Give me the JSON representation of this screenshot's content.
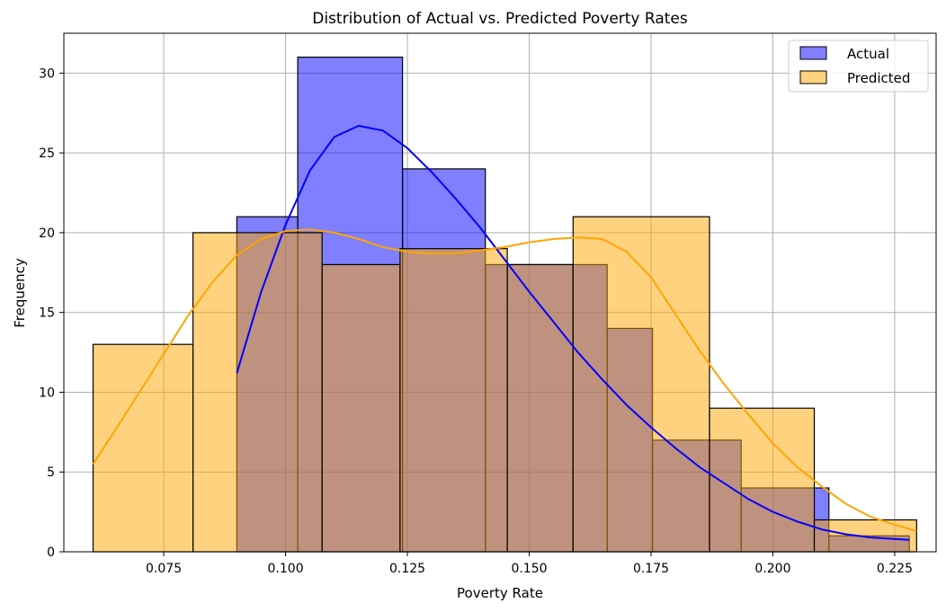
{
  "chart_data": {
    "type": "histogram",
    "title": "Distribution of Actual vs. Predicted Poverty Rates",
    "xlabel": "Poverty Rate",
    "ylabel": "Frequency",
    "xlim": [
      0.0545,
      0.2335
    ],
    "ylim": [
      0,
      32.5
    ],
    "x_ticks": [
      0.075,
      0.1,
      0.125,
      0.15,
      0.175,
      0.2,
      0.225
    ],
    "x_tick_labels": [
      "0.075",
      "0.100",
      "0.125",
      "0.150",
      "0.175",
      "0.200",
      "0.225"
    ],
    "y_ticks": [
      0,
      5,
      10,
      15,
      20,
      25,
      30
    ],
    "y_tick_labels": [
      "0",
      "5",
      "10",
      "15",
      "20",
      "25",
      "30"
    ],
    "grid": true,
    "legend_position": "top-right",
    "series": [
      {
        "name": "Actual",
        "color": "#0000ff",
        "fill_opacity": 0.5,
        "bins": [
          {
            "x0": 0.09,
            "x1": 0.1025,
            "count": 21
          },
          {
            "x0": 0.1025,
            "x1": 0.124,
            "count": 31
          },
          {
            "x0": 0.124,
            "x1": 0.141,
            "count": 24
          },
          {
            "x0": 0.141,
            "x1": 0.166,
            "count": 18
          },
          {
            "x0": 0.166,
            "x1": 0.1753,
            "count": 14
          },
          {
            "x0": 0.1753,
            "x1": 0.1935,
            "count": 7
          },
          {
            "x0": 0.1935,
            "x1": 0.2115,
            "count": 4
          },
          {
            "x0": 0.2115,
            "x1": 0.228,
            "count": 1
          }
        ],
        "kde": [
          [
            0.09,
            11.2
          ],
          [
            0.095,
            16.3
          ],
          [
            0.1,
            20.5
          ],
          [
            0.105,
            23.9
          ],
          [
            0.11,
            26.0
          ],
          [
            0.115,
            26.7
          ],
          [
            0.12,
            26.4
          ],
          [
            0.125,
            25.3
          ],
          [
            0.13,
            23.8
          ],
          [
            0.135,
            22.1
          ],
          [
            0.14,
            20.3
          ],
          [
            0.145,
            18.3
          ],
          [
            0.15,
            16.3
          ],
          [
            0.155,
            14.4
          ],
          [
            0.16,
            12.5
          ],
          [
            0.165,
            10.8
          ],
          [
            0.17,
            9.2
          ],
          [
            0.175,
            7.8
          ],
          [
            0.18,
            6.5
          ],
          [
            0.185,
            5.3
          ],
          [
            0.19,
            4.3
          ],
          [
            0.195,
            3.3
          ],
          [
            0.2,
            2.5
          ],
          [
            0.205,
            1.9
          ],
          [
            0.21,
            1.4
          ],
          [
            0.215,
            1.1
          ],
          [
            0.22,
            0.9
          ],
          [
            0.225,
            0.8
          ],
          [
            0.228,
            0.75
          ]
        ]
      },
      {
        "name": "Predicted",
        "color": "#ffa500",
        "fill_opacity": 0.5,
        "bins": [
          {
            "x0": 0.0605,
            "x1": 0.081,
            "count": 13
          },
          {
            "x0": 0.081,
            "x1": 0.1075,
            "count": 20
          },
          {
            "x0": 0.1075,
            "x1": 0.1235,
            "count": 18
          },
          {
            "x0": 0.1235,
            "x1": 0.1455,
            "count": 19
          },
          {
            "x0": 0.1455,
            "x1": 0.159,
            "count": 18
          },
          {
            "x0": 0.159,
            "x1": 0.187,
            "count": 21
          },
          {
            "x0": 0.187,
            "x1": 0.2085,
            "count": 9
          },
          {
            "x0": 0.2085,
            "x1": 0.2295,
            "count": 2
          }
        ],
        "kde": [
          [
            0.0605,
            5.5
          ],
          [
            0.065,
            7.6
          ],
          [
            0.07,
            10.0
          ],
          [
            0.075,
            12.4
          ],
          [
            0.08,
            14.8
          ],
          [
            0.085,
            16.9
          ],
          [
            0.09,
            18.6
          ],
          [
            0.095,
            19.6
          ],
          [
            0.1,
            20.1
          ],
          [
            0.105,
            20.2
          ],
          [
            0.11,
            20.0
          ],
          [
            0.115,
            19.6
          ],
          [
            0.12,
            19.1
          ],
          [
            0.125,
            18.8
          ],
          [
            0.13,
            18.7
          ],
          [
            0.135,
            18.7
          ],
          [
            0.14,
            18.9
          ],
          [
            0.145,
            19.1
          ],
          [
            0.15,
            19.4
          ],
          [
            0.155,
            19.6
          ],
          [
            0.16,
            19.7
          ],
          [
            0.165,
            19.6
          ],
          [
            0.17,
            18.8
          ],
          [
            0.175,
            17.2
          ],
          [
            0.18,
            14.9
          ],
          [
            0.185,
            12.6
          ],
          [
            0.19,
            10.5
          ],
          [
            0.195,
            8.6
          ],
          [
            0.2,
            6.8
          ],
          [
            0.205,
            5.3
          ],
          [
            0.21,
            4.1
          ],
          [
            0.215,
            3.0
          ],
          [
            0.22,
            2.2
          ],
          [
            0.225,
            1.7
          ],
          [
            0.2295,
            1.3
          ]
        ]
      }
    ]
  }
}
